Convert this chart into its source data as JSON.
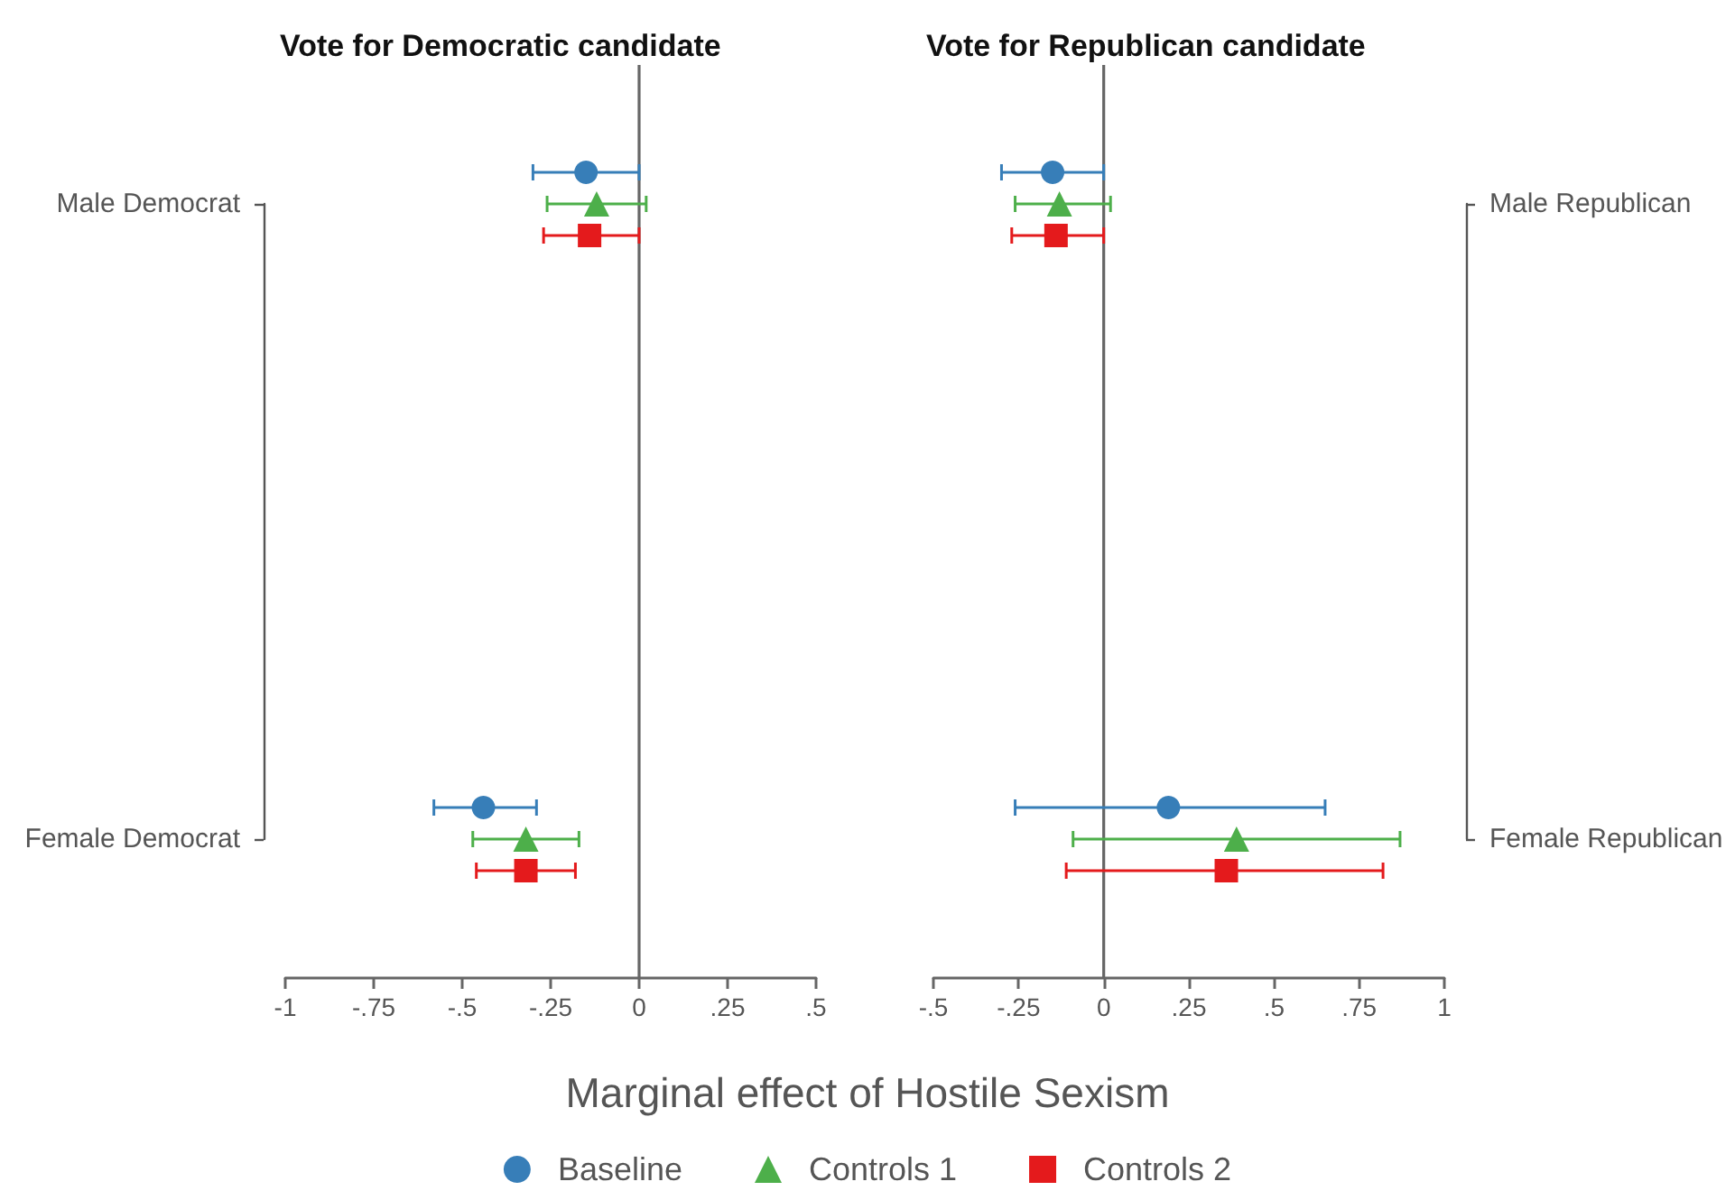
{
  "chart_data": [
    {
      "type": "scatter",
      "orientation": "horizontal",
      "title": "Vote for Democratic candidate",
      "xlabel": "Marginal effect of Hostile Sexism",
      "legend": "bottom",
      "categories": [
        "Male Democrat",
        "Female Democrat"
      ],
      "xlim": [
        -1,
        0.5
      ],
      "xticks": [
        -1,
        {
          "value": -0.75,
          "label": "-.75"
        },
        {
          "value": -0.5,
          "label": "-.5"
        },
        {
          "value": -0.25,
          "label": "-.25"
        },
        0,
        {
          "value": 0.25,
          "label": ".25"
        },
        {
          "value": 0.5,
          "label": ".5"
        }
      ],
      "ref_lines": [
        {
          "axis": "x",
          "value": 0,
          "color": "#666666"
        }
      ],
      "series": [
        {
          "name": "Baseline",
          "color": "#377eb8",
          "marker": "circle",
          "values": [
            -0.15,
            -0.44
          ],
          "errors": [
            [
              -0.3,
              0
            ],
            [
              -0.58,
              -0.29
            ]
          ]
        },
        {
          "name": "Controls 1",
          "color": "#4daf4a",
          "marker": "triangle",
          "values": [
            -0.12,
            -0.32
          ],
          "errors": [
            [
              -0.26,
              0.02
            ],
            [
              -0.47,
              -0.17
            ]
          ]
        },
        {
          "name": "Controls 2",
          "color": "#e41a1c",
          "marker": "square",
          "values": [
            -0.14,
            -0.32
          ],
          "errors": [
            [
              -0.27,
              0
            ],
            [
              -0.46,
              -0.18
            ]
          ]
        }
      ]
    },
    {
      "type": "scatter",
      "orientation": "horizontal",
      "title": "Vote for Republican candidate",
      "categories": [
        "Male Republican",
        "Female Republican"
      ],
      "xlim": [
        -0.5,
        1
      ],
      "xticks": [
        {
          "value": -0.5,
          "label": "-.5"
        },
        {
          "value": -0.25,
          "label": "-.25"
        },
        0,
        {
          "value": 0.25,
          "label": ".25"
        },
        {
          "value": 0.5,
          "label": ".5"
        },
        {
          "value": 0.75,
          "label": ".75"
        },
        1
      ],
      "ref_lines": [
        {
          "axis": "x",
          "value": 0,
          "color": "#666666"
        }
      ],
      "series": [
        {
          "name": "Baseline",
          "color": "#377eb8",
          "marker": "circle",
          "values": [
            -0.15,
            0.19
          ],
          "errors": [
            [
              -0.3,
              0
            ],
            [
              -0.26,
              0.65
            ]
          ]
        },
        {
          "name": "Controls 1",
          "color": "#4daf4a",
          "marker": "triangle",
          "values": [
            -0.13,
            0.39
          ],
          "errors": [
            [
              -0.26,
              0.02
            ],
            [
              -0.09,
              0.87
            ]
          ]
        },
        {
          "name": "Controls 2",
          "color": "#e41a1c",
          "marker": "square",
          "values": [
            -0.14,
            0.36
          ],
          "errors": [
            [
              -0.27,
              0
            ],
            [
              -0.11,
              0.82
            ]
          ]
        }
      ]
    }
  ]
}
